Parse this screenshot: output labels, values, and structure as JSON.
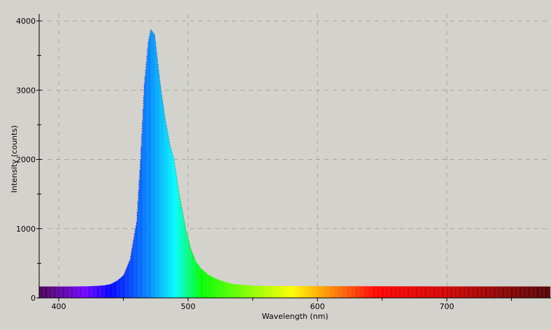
{
  "chart_data": {
    "type": "area",
    "title": "",
    "xlabel": "Wavelength (nm)",
    "ylabel": "Intensity (counts)",
    "xlim": [
      385,
      780
    ],
    "ylim": [
      0,
      4100
    ],
    "x_ticks": [
      400,
      500,
      600,
      700
    ],
    "y_ticks": [
      0,
      1000,
      2000,
      3000,
      4000
    ],
    "grid": true,
    "legend": "none",
    "fill": "visible-spectrum color by wavelength",
    "x": [
      385,
      390,
      400,
      410,
      420,
      425,
      430,
      435,
      440,
      445,
      450,
      455,
      460,
      463,
      466,
      469,
      471,
      474,
      477,
      479,
      482,
      486,
      489,
      493,
      498,
      502,
      506,
      510,
      515,
      520,
      525,
      530,
      535,
      540,
      550,
      560,
      600,
      650,
      700,
      780
    ],
    "y": [
      165,
      165,
      165,
      165,
      167,
      170,
      175,
      182,
      200,
      250,
      330,
      560,
      1100,
      2000,
      3100,
      3700,
      3880,
      3800,
      3300,
      3000,
      2600,
      2200,
      2000,
      1500,
      1000,
      700,
      520,
      420,
      340,
      290,
      250,
      220,
      200,
      190,
      178,
      172,
      170,
      168,
      166,
      165
    ]
  },
  "colors": {
    "background": "#d4d2cd",
    "grid": "#a6a4a0",
    "spectrum_stops": [
      {
        "nm": 385,
        "color": "#4a0050"
      },
      {
        "nm": 420,
        "color": "#7000ff"
      },
      {
        "nm": 440,
        "color": "#0000ff"
      },
      {
        "nm": 470,
        "color": "#0088ff"
      },
      {
        "nm": 490,
        "color": "#00ffff"
      },
      {
        "nm": 510,
        "color": "#00ff00"
      },
      {
        "nm": 580,
        "color": "#ffff00"
      },
      {
        "nm": 645,
        "color": "#ff0000"
      },
      {
        "nm": 700,
        "color": "#d00000"
      },
      {
        "nm": 780,
        "color": "#500000"
      }
    ]
  }
}
